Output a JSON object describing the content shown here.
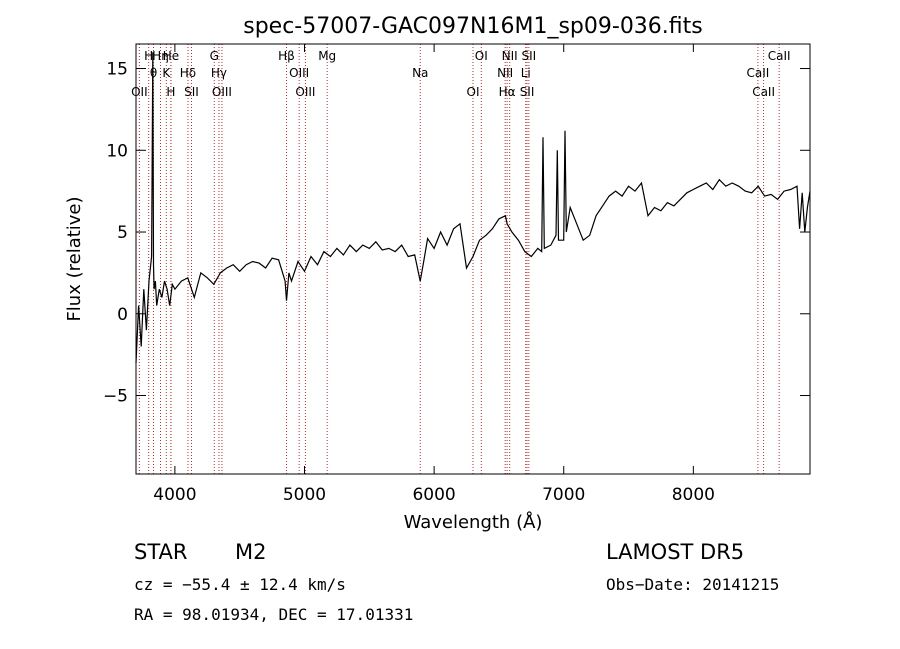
{
  "chart_data": {
    "type": "line",
    "title": "spec-57007-GAC097N16M1_sp09-036.fits",
    "xlabel": "Wavelength (Å)",
    "ylabel": "Flux (relative)",
    "xlim": [
      3700,
      8900
    ],
    "ylim": [
      -9.8,
      16.5
    ],
    "x_ticks": [
      4000,
      5000,
      6000,
      7000,
      8000
    ],
    "y_ticks": [
      -5,
      0,
      5,
      10,
      15
    ],
    "grid": false,
    "series": [
      {
        "x": [
          3700,
          3720,
          3740,
          3760,
          3780,
          3800,
          3820,
          3830,
          3835,
          3840,
          3850,
          3860,
          3880,
          3900,
          3920,
          3940,
          3960,
          3980,
          4000,
          4050,
          4100,
          4150,
          4200,
          4250,
          4300,
          4350,
          4400,
          4450,
          4500,
          4550,
          4600,
          4650,
          4700,
          4750,
          4800,
          4850,
          4861,
          4880,
          4900,
          4950,
          5000,
          5050,
          5100,
          5150,
          5200,
          5250,
          5300,
          5350,
          5400,
          5450,
          5500,
          5550,
          5600,
          5650,
          5700,
          5750,
          5800,
          5850,
          5893,
          5920,
          5950,
          6000,
          6050,
          6100,
          6150,
          6200,
          6250,
          6300,
          6350,
          6400,
          6450,
          6500,
          6550,
          6563,
          6600,
          6650,
          6700,
          6750,
          6800,
          6830,
          6840,
          6850,
          6900,
          6940,
          6950,
          6960,
          7000,
          7010,
          7020,
          7050,
          7100,
          7150,
          7200,
          7250,
          7300,
          7350,
          7400,
          7450,
          7500,
          7550,
          7600,
          7650,
          7700,
          7750,
          7800,
          7850,
          7900,
          7950,
          8000,
          8050,
          8100,
          8150,
          8200,
          8250,
          8300,
          8350,
          8400,
          8450,
          8500,
          8550,
          8600,
          8650,
          8700,
          8750,
          8800,
          8820,
          8840,
          8860,
          8880,
          8900
        ],
        "y": [
          -3.0,
          0.5,
          -2.0,
          1.5,
          -1.0,
          2.0,
          3.5,
          16.0,
          3.0,
          1.5,
          2.0,
          0.5,
          1.5,
          1.0,
          2.0,
          1.5,
          0.5,
          1.8,
          1.5,
          2.0,
          2.2,
          1.0,
          2.5,
          2.2,
          1.8,
          2.5,
          2.8,
          3.0,
          2.6,
          3.0,
          3.2,
          3.1,
          2.8,
          3.4,
          3.3,
          2.0,
          0.8,
          2.5,
          2.0,
          3.2,
          2.6,
          3.5,
          3.0,
          3.8,
          3.5,
          4.0,
          3.6,
          4.2,
          3.8,
          4.2,
          4.0,
          4.4,
          3.9,
          4.0,
          3.8,
          4.2,
          3.5,
          3.6,
          2.0,
          3.2,
          4.6,
          4.0,
          5.0,
          4.2,
          5.2,
          5.5,
          2.8,
          3.5,
          4.5,
          4.8,
          5.2,
          5.8,
          6.0,
          5.5,
          5.0,
          4.5,
          3.8,
          3.5,
          4.0,
          3.8,
          10.8,
          4.0,
          4.2,
          4.8,
          10.0,
          4.5,
          4.5,
          11.2,
          5.0,
          6.5,
          5.5,
          4.5,
          4.8,
          6.0,
          6.6,
          7.2,
          7.5,
          7.2,
          7.8,
          7.5,
          8.0,
          6.0,
          6.5,
          6.3,
          6.8,
          6.6,
          7.0,
          7.4,
          7.6,
          7.8,
          8.0,
          7.6,
          8.2,
          7.8,
          8.0,
          7.8,
          7.5,
          7.4,
          7.8,
          7.2,
          7.3,
          7.0,
          7.5,
          7.6,
          7.8,
          5.2,
          7.4,
          5.0,
          6.5,
          7.5
        ]
      }
    ],
    "lines": [
      {
        "x": 3798,
        "label": "H"
      },
      {
        "x": 3835,
        "label": "θ"
      },
      {
        "x": 3726,
        "label": "OII"
      },
      {
        "x": 3889,
        "label": "Hη"
      },
      {
        "x": 3934,
        "label": "K"
      },
      {
        "x": 3969,
        "label": "H"
      },
      {
        "x": 3970,
        "label": "He"
      },
      {
        "x": 4101,
        "label": "Hδ"
      },
      {
        "x": 4128,
        "label": "SII"
      },
      {
        "x": 4304,
        "label": "G"
      },
      {
        "x": 4340,
        "label": "Hγ"
      },
      {
        "x": 4363,
        "label": "OIII"
      },
      {
        "x": 4861,
        "label": "Hβ"
      },
      {
        "x": 4959,
        "label": "OIII"
      },
      {
        "x": 5007,
        "label": "OIII"
      },
      {
        "x": 5175,
        "label": "Mg"
      },
      {
        "x": 5893,
        "label": "Na"
      },
      {
        "x": 6300,
        "label": "OI"
      },
      {
        "x": 6364,
        "label": "OI"
      },
      {
        "x": 6548,
        "label": "NII"
      },
      {
        "x": 6563,
        "label": "Hα"
      },
      {
        "x": 6583,
        "label": "NII"
      },
      {
        "x": 6707,
        "label": "Li"
      },
      {
        "x": 6717,
        "label": "SII"
      },
      {
        "x": 6731,
        "label": "SII"
      },
      {
        "x": 8498,
        "label": "CaII"
      },
      {
        "x": 8542,
        "label": "CaII"
      },
      {
        "x": 8662,
        "label": "CaII"
      }
    ]
  },
  "info": {
    "class": "STAR",
    "subclass": "M2",
    "survey": "LAMOST DR5",
    "cz": "cz = −55.4 ± 12.4 km/s",
    "obs_date": "Obs−Date: 20141215",
    "coords": "RA =  98.01934, DEC =  17.01331"
  }
}
